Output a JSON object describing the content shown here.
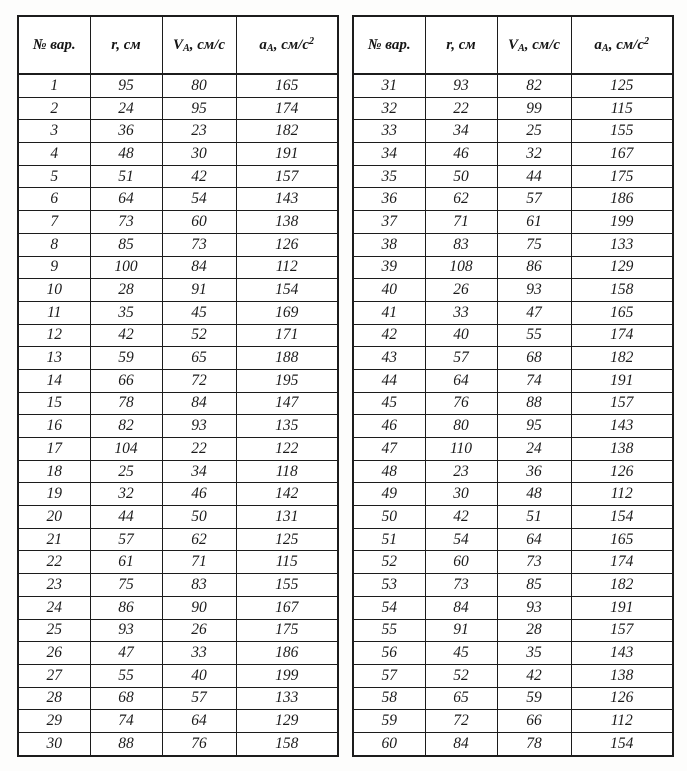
{
  "document": {
    "kind": "scanned-variant-table",
    "ink_color": "#1c1c1c",
    "paper_color": "#fdfdfc"
  },
  "tables": [
    {
      "name": "variants-1-30",
      "headers": [
        {
          "segments": [
            {
              "t": "№ вар."
            }
          ]
        },
        {
          "segments": [
            {
              "t": "r, см"
            }
          ]
        },
        {
          "segments": [
            {
              "t": "V"
            },
            {
              "t": "A",
              "sub": true
            },
            {
              "t": ", см/с"
            }
          ]
        },
        {
          "segments": [
            {
              "t": "a"
            },
            {
              "t": "A",
              "sub": true
            },
            {
              "t": ", см/с"
            },
            {
              "t": "2",
              "sup": true
            }
          ]
        }
      ],
      "rows": [
        [
          "1",
          "95",
          "80",
          "165"
        ],
        [
          "2",
          "24",
          "95",
          "174"
        ],
        [
          "3",
          "36",
          "23",
          "182"
        ],
        [
          "4",
          "48",
          "30",
          "191"
        ],
        [
          "5",
          "51",
          "42",
          "157"
        ],
        [
          "6",
          "64",
          "54",
          "143"
        ],
        [
          "7",
          "73",
          "60",
          "138"
        ],
        [
          "8",
          "85",
          "73",
          "126"
        ],
        [
          "9",
          "100",
          "84",
          "112"
        ],
        [
          "10",
          "28",
          "91",
          "154"
        ],
        [
          "11",
          "35",
          "45",
          "169"
        ],
        [
          "12",
          "42",
          "52",
          "171"
        ],
        [
          "13",
          "59",
          "65",
          "188"
        ],
        [
          "14",
          "66",
          "72",
          "195"
        ],
        [
          "15",
          "78",
          "84",
          "147"
        ],
        [
          "16",
          "82",
          "93",
          "135"
        ],
        [
          "17",
          "104",
          "22",
          "122"
        ],
        [
          "18",
          "25",
          "34",
          "118"
        ],
        [
          "19",
          "32",
          "46",
          "142"
        ],
        [
          "20",
          "44",
          "50",
          "131"
        ],
        [
          "21",
          "57",
          "62",
          "125"
        ],
        [
          "22",
          "61",
          "71",
          "115"
        ],
        [
          "23",
          "75",
          "83",
          "155"
        ],
        [
          "24",
          "86",
          "90",
          "167"
        ],
        [
          "25",
          "93",
          "26",
          "175"
        ],
        [
          "26",
          "47",
          "33",
          "186"
        ],
        [
          "27",
          "55",
          "40",
          "199"
        ],
        [
          "28",
          "68",
          "57",
          "133"
        ],
        [
          "29",
          "74",
          "64",
          "129"
        ],
        [
          "30",
          "88",
          "76",
          "158"
        ]
      ]
    },
    {
      "name": "variants-31-60",
      "headers": [
        {
          "segments": [
            {
              "t": "№ вар."
            }
          ]
        },
        {
          "segments": [
            {
              "t": "r, см"
            }
          ]
        },
        {
          "segments": [
            {
              "t": "V"
            },
            {
              "t": "A",
              "sub": true
            },
            {
              "t": ", см/с"
            }
          ]
        },
        {
          "segments": [
            {
              "t": "a"
            },
            {
              "t": "A",
              "sub": true
            },
            {
              "t": ", см/с"
            },
            {
              "t": "2",
              "sup": true
            }
          ]
        }
      ],
      "rows": [
        [
          "31",
          "93",
          "82",
          "125"
        ],
        [
          "32",
          "22",
          "99",
          "115"
        ],
        [
          "33",
          "34",
          "25",
          "155"
        ],
        [
          "34",
          "46",
          "32",
          "167"
        ],
        [
          "35",
          "50",
          "44",
          "175"
        ],
        [
          "36",
          "62",
          "57",
          "186"
        ],
        [
          "37",
          "71",
          "61",
          "199"
        ],
        [
          "38",
          "83",
          "75",
          "133"
        ],
        [
          "39",
          "108",
          "86",
          "129"
        ],
        [
          "40",
          "26",
          "93",
          "158"
        ],
        [
          "41",
          "33",
          "47",
          "165"
        ],
        [
          "42",
          "40",
          "55",
          "174"
        ],
        [
          "43",
          "57",
          "68",
          "182"
        ],
        [
          "44",
          "64",
          "74",
          "191"
        ],
        [
          "45",
          "76",
          "88",
          "157"
        ],
        [
          "46",
          "80",
          "95",
          "143"
        ],
        [
          "47",
          "110",
          "24",
          "138"
        ],
        [
          "48",
          "23",
          "36",
          "126"
        ],
        [
          "49",
          "30",
          "48",
          "112"
        ],
        [
          "50",
          "42",
          "51",
          "154"
        ],
        [
          "51",
          "54",
          "64",
          "165"
        ],
        [
          "52",
          "60",
          "73",
          "174"
        ],
        [
          "53",
          "73",
          "85",
          "182"
        ],
        [
          "54",
          "84",
          "93",
          "191"
        ],
        [
          "55",
          "91",
          "28",
          "157"
        ],
        [
          "56",
          "45",
          "35",
          "143"
        ],
        [
          "57",
          "52",
          "42",
          "138"
        ],
        [
          "58",
          "65",
          "59",
          "126"
        ],
        [
          "59",
          "72",
          "66",
          "112"
        ],
        [
          "60",
          "84",
          "78",
          "154"
        ]
      ]
    }
  ]
}
